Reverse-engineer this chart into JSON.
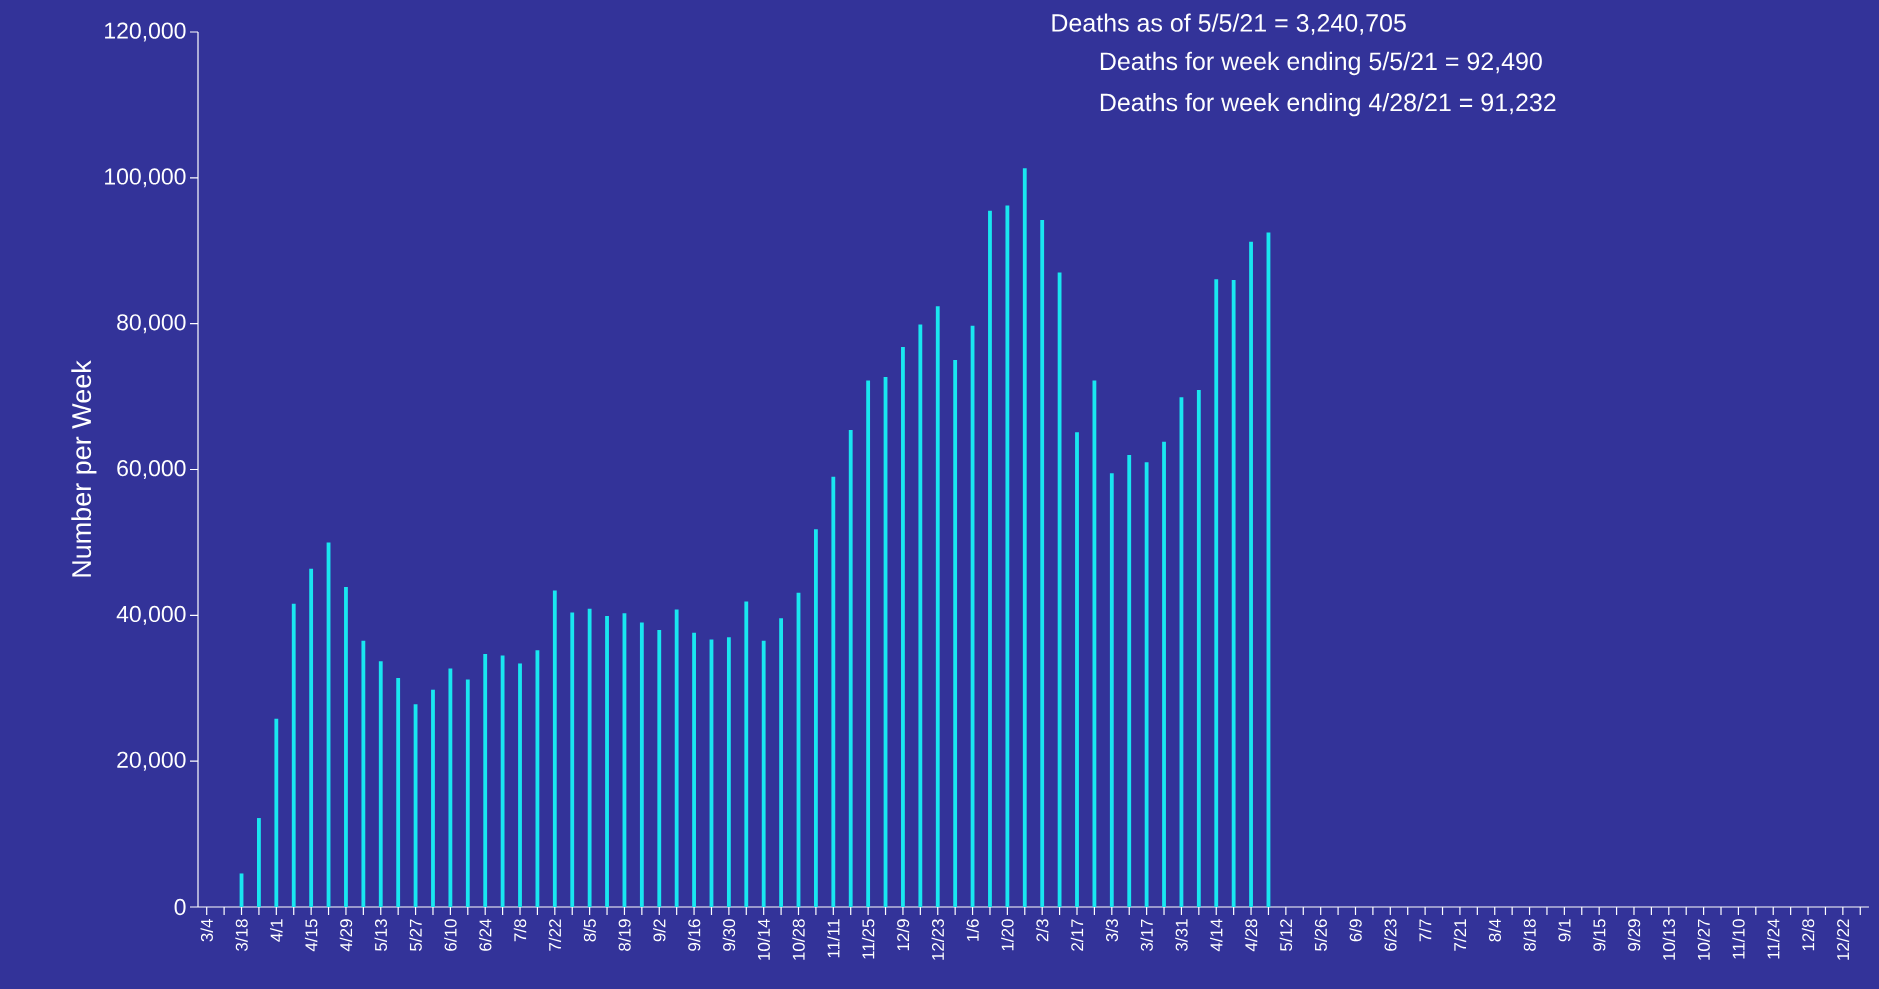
{
  "chart_data": {
    "type": "bar",
    "ylabel": "Number per Week",
    "categories": [
      "3/4",
      null,
      "3/18",
      null,
      "4/1",
      null,
      "4/15",
      null,
      "4/29",
      null,
      "5/13",
      null,
      "5/27",
      null,
      "6/10",
      null,
      "6/24",
      null,
      "7/8",
      null,
      "7/22",
      null,
      "8/5",
      null,
      "8/19",
      null,
      "9/2",
      null,
      "9/16",
      null,
      "9/30",
      null,
      "10/14",
      null,
      "10/28",
      null,
      "11/11",
      null,
      "11/25",
      null,
      "12/9",
      null,
      "12/23",
      null,
      "1/6",
      null,
      "1/20",
      null,
      "2/3",
      null,
      "2/17",
      null,
      "3/3",
      null,
      "3/17",
      null,
      "3/31",
      null,
      "4/14",
      null,
      "4/28",
      null,
      "5/12",
      null,
      "5/26",
      null,
      "6/9",
      null,
      "6/23",
      null,
      "7/7",
      null,
      "7/21",
      null,
      "8/4",
      null,
      "8/18",
      null,
      "9/1",
      null,
      "9/15",
      null,
      "9/29",
      null,
      "10/13",
      null,
      "10/27",
      null,
      "11/10",
      null,
      "11/24",
      null,
      "12/8",
      null,
      "12/22",
      null
    ],
    "values": [
      null,
      null,
      4600,
      12200,
      25800,
      41600,
      46400,
      50000,
      43900,
      36500,
      33700,
      31400,
      27800,
      29800,
      32700,
      31200,
      34700,
      34500,
      33400,
      35200,
      43400,
      40400,
      40900,
      39900,
      40300,
      39000,
      38000,
      40800,
      37600,
      36700,
      37000,
      41900,
      36500,
      39600,
      43100,
      51800,
      59000,
      65400,
      72200,
      72700,
      76800,
      79900,
      82400,
      75000,
      79700,
      95500,
      96200,
      101300,
      94200,
      87000,
      65100,
      72200,
      59500,
      62000,
      61000,
      63800,
      69900,
      70900,
      86100,
      86000,
      91232,
      92490,
      null,
      null,
      null,
      null,
      null,
      null,
      null,
      null,
      null,
      null,
      null,
      null,
      null,
      null,
      null,
      null,
      null,
      null,
      null,
      null,
      null,
      null,
      null,
      null,
      null,
      null,
      null,
      null,
      null,
      null,
      null,
      null,
      null,
      null
    ],
    "color": "#19e6f0",
    "ylim": [
      0,
      120000
    ],
    "yticks": [
      0,
      {
        "value": 20000,
        "label": "20,000"
      },
      {
        "value": 40000,
        "label": "40,000"
      },
      {
        "value": 60000,
        "label": "60,000"
      },
      {
        "value": 80000,
        "label": "80,000"
      },
      {
        "value": 100000,
        "label": "100,000"
      },
      {
        "value": 120000,
        "label": "120,000"
      }
    ],
    "annotations": [
      "Deaths as of 5/5/21 = 3,240,705",
      "Deaths for week ending 5/5/21 = 92,490",
      "Deaths for week ending 4/28/21 = 91,232"
    ]
  }
}
